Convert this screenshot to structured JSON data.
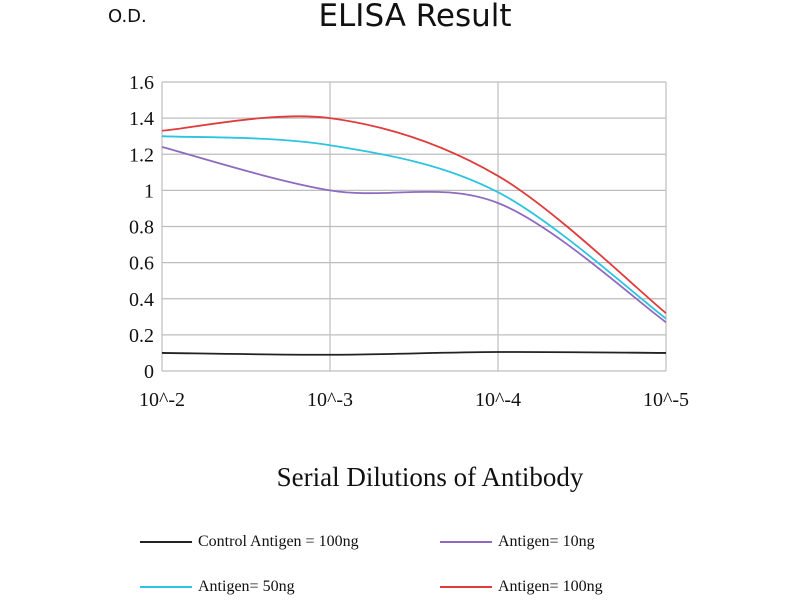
{
  "chart_data": {
    "type": "line",
    "title": "ELISA Result",
    "ylabel": "O.D.",
    "xlabel": "Serial Dilutions of Antibody",
    "categories": [
      "10^-2",
      "10^-3",
      "10^-4",
      "10^-5"
    ],
    "ylim": [
      0,
      1.6
    ],
    "yticks": [
      "0",
      "0.2",
      "0.4",
      "0.6",
      "0.8",
      "1",
      "1.2",
      "1.4",
      "1.6"
    ],
    "grid": true,
    "legend_position": "bottom",
    "series": [
      {
        "name": "Control Antigen = 100ng",
        "color": "#222222",
        "values": [
          0.1,
          0.09,
          0.105,
          0.1
        ]
      },
      {
        "name": "Antigen= 10ng",
        "color": "#8e6bbf",
        "values": [
          1.24,
          1.0,
          0.93,
          0.27
        ]
      },
      {
        "name": "Antigen= 50ng",
        "color": "#2cc4e0",
        "values": [
          1.3,
          1.25,
          0.99,
          0.29
        ]
      },
      {
        "name": "Antigen= 100ng",
        "color": "#e03c3c",
        "values": [
          1.33,
          1.4,
          1.08,
          0.32
        ]
      }
    ]
  }
}
